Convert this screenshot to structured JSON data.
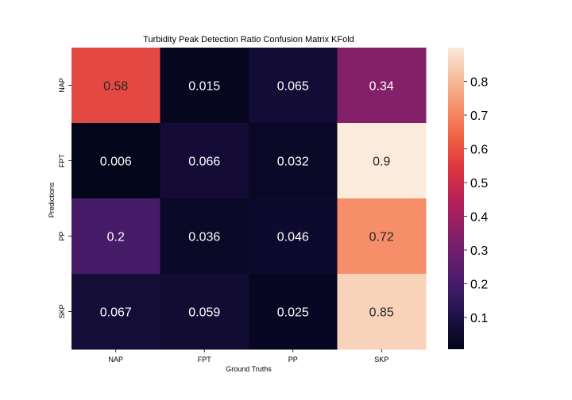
{
  "chart_data": {
    "type": "heatmap",
    "title": "Turbidity Peak Detection Ratio Confusion Matrix KFold",
    "xlabel": "Ground Truths",
    "ylabel": "Predictions",
    "x_categories": [
      "NAP",
      "FPT",
      "PP",
      "SKP"
    ],
    "y_categories": [
      "NAP",
      "FPT",
      "PP",
      "SKP"
    ],
    "values": [
      [
        0.58,
        0.015,
        0.065,
        0.34
      ],
      [
        0.006,
        0.066,
        0.032,
        0.9
      ],
      [
        0.2,
        0.036,
        0.046,
        0.72
      ],
      [
        0.067,
        0.059,
        0.025,
        0.85
      ]
    ],
    "cell_labels": [
      [
        "0.58",
        "0.015",
        "0.065",
        "0.34"
      ],
      [
        "0.006",
        "0.066",
        "0.032",
        "0.9"
      ],
      [
        "0.2",
        "0.036",
        "0.046",
        "0.72"
      ],
      [
        "0.067",
        "0.059",
        "0.025",
        "0.85"
      ]
    ],
    "colorbar": {
      "min": 0.006,
      "max": 0.9,
      "ticks": [
        0.1,
        0.2,
        0.3,
        0.4,
        0.5,
        0.6,
        0.7,
        0.8
      ],
      "tick_labels": [
        "0.1",
        "0.2",
        "0.3",
        "0.4",
        "0.5",
        "0.6",
        "0.7",
        "0.8"
      ]
    },
    "colormap": "rocket",
    "grid": false
  }
}
